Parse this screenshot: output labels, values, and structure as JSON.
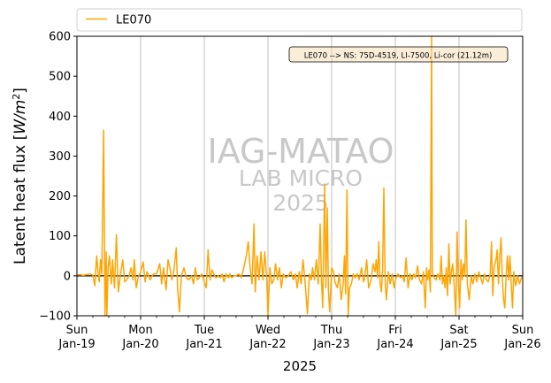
{
  "chart_data": {
    "type": "line",
    "title": "",
    "xlabel": "2025",
    "ylabel": "Latent heat flux [W/m²]",
    "ylabel_parts": {
      "base": "Latent heat flux [",
      "unit": "W/m",
      "exp": "2",
      "close": "]"
    },
    "xlim_days": [
      0,
      7
    ],
    "ylim": [
      -100,
      600
    ],
    "y_ticks": [
      -100,
      0,
      100,
      200,
      300,
      400,
      500,
      600
    ],
    "x_ticks": [
      {
        "day": 0,
        "line1": "Sun",
        "line2": "Jan-19"
      },
      {
        "day": 1,
        "line1": "Mon",
        "line2": "Jan-20"
      },
      {
        "day": 2,
        "line1": "Tue",
        "line2": "Jan-21"
      },
      {
        "day": 3,
        "line1": "Wed",
        "line2": "Jan-22"
      },
      {
        "day": 4,
        "line1": "Thu",
        "line2": "Jan-23"
      },
      {
        "day": 5,
        "line1": "Fri",
        "line2": "Jan-24"
      },
      {
        "day": 6,
        "line1": "Sat",
        "line2": "Jan-25"
      },
      {
        "day": 7,
        "line1": "Sun",
        "line2": "Jan-26"
      }
    ],
    "grid": "vertical",
    "zero_line": true,
    "legend": {
      "placement": "top",
      "entries": [
        {
          "name": "LE070",
          "color": "#FFA500"
        }
      ]
    },
    "annotation": "LE070 --> NS: 75D-4519, LI-7500, Li-cor (21.12m)",
    "watermark": {
      "line1": "IAG-MATAO",
      "line2": "LAB MICRO",
      "line3": "2025"
    },
    "series": [
      {
        "name": "LE070",
        "color": "#FFA500",
        "points": [
          [
            0.0,
            2
          ],
          [
            0.05,
            3
          ],
          [
            0.1,
            1
          ],
          [
            0.15,
            3
          ],
          [
            0.2,
            5
          ],
          [
            0.25,
            2
          ],
          [
            0.28,
            -25
          ],
          [
            0.31,
            50
          ],
          [
            0.33,
            10
          ],
          [
            0.35,
            -15
          ],
          [
            0.37,
            40
          ],
          [
            0.39,
            5
          ],
          [
            0.42,
            365
          ],
          [
            0.44,
            -100
          ],
          [
            0.46,
            60
          ],
          [
            0.47,
            -100
          ],
          [
            0.49,
            20
          ],
          [
            0.51,
            50
          ],
          [
            0.54,
            -20
          ],
          [
            0.56,
            40
          ],
          [
            0.59,
            -30
          ],
          [
            0.62,
            103
          ],
          [
            0.65,
            -40
          ],
          [
            0.68,
            0
          ],
          [
            0.72,
            40
          ],
          [
            0.75,
            -15
          ],
          [
            0.78,
            -10
          ],
          [
            0.82,
            0
          ],
          [
            0.85,
            20
          ],
          [
            0.88,
            -10
          ],
          [
            0.9,
            40
          ],
          [
            0.93,
            -30
          ],
          [
            0.96,
            -5
          ],
          [
            1.0,
            10
          ],
          [
            1.04,
            35
          ],
          [
            1.07,
            -15
          ],
          [
            1.1,
            10
          ],
          [
            1.15,
            -10
          ],
          [
            1.2,
            5
          ],
          [
            1.25,
            5
          ],
          [
            1.3,
            30
          ],
          [
            1.33,
            -20
          ],
          [
            1.36,
            20
          ],
          [
            1.4,
            -35
          ],
          [
            1.43,
            40
          ],
          [
            1.46,
            20
          ],
          [
            1.49,
            -10
          ],
          [
            1.52,
            10
          ],
          [
            1.56,
            70
          ],
          [
            1.58,
            -30
          ],
          [
            1.61,
            -90
          ],
          [
            1.64,
            0
          ],
          [
            1.68,
            20
          ],
          [
            1.72,
            -5
          ],
          [
            1.76,
            -10
          ],
          [
            1.8,
            0
          ],
          [
            1.83,
            -20
          ],
          [
            1.86,
            20
          ],
          [
            1.89,
            -10
          ],
          [
            1.92,
            -5
          ],
          [
            1.96,
            5
          ],
          [
            2.0,
            -15
          ],
          [
            2.03,
            -30
          ],
          [
            2.06,
            65
          ],
          [
            2.09,
            -10
          ],
          [
            2.12,
            15
          ],
          [
            2.15,
            5
          ],
          [
            2.18,
            -5
          ],
          [
            2.22,
            0
          ],
          [
            2.25,
            -5
          ],
          [
            2.28,
            5
          ],
          [
            2.31,
            -15
          ],
          [
            2.34,
            5
          ],
          [
            2.38,
            -5
          ],
          [
            2.4,
            5
          ],
          [
            2.43,
            -5
          ],
          [
            2.46,
            0
          ],
          [
            2.5,
            0
          ],
          [
            2.54,
            5
          ],
          [
            2.58,
            -5
          ],
          [
            2.62,
            20
          ],
          [
            2.66,
            50
          ],
          [
            2.69,
            85
          ],
          [
            2.72,
            20
          ],
          [
            2.75,
            -20
          ],
          [
            2.78,
            130
          ],
          [
            2.8,
            -40
          ],
          [
            2.83,
            50
          ],
          [
            2.86,
            -10
          ],
          [
            2.89,
            60
          ],
          [
            2.92,
            -10
          ],
          [
            2.95,
            60
          ],
          [
            2.98,
            -10
          ],
          [
            3.0,
            -100
          ],
          [
            3.03,
            20
          ],
          [
            3.06,
            -20
          ],
          [
            3.09,
            -10
          ],
          [
            3.12,
            30
          ],
          [
            3.15,
            -10
          ],
          [
            3.18,
            20
          ],
          [
            3.21,
            -30
          ],
          [
            3.24,
            5
          ],
          [
            3.28,
            -5
          ],
          [
            3.32,
            0
          ],
          [
            3.36,
            10
          ],
          [
            3.4,
            -10
          ],
          [
            3.43,
            5
          ],
          [
            3.46,
            -30
          ],
          [
            3.49,
            10
          ],
          [
            3.52,
            -20
          ],
          [
            3.55,
            40
          ],
          [
            3.58,
            -10
          ],
          [
            3.62,
            -95
          ],
          [
            3.65,
            5
          ],
          [
            3.68,
            -10
          ],
          [
            3.7,
            20
          ],
          [
            3.73,
            -10
          ],
          [
            3.76,
            40
          ],
          [
            3.79,
            -20
          ],
          [
            3.82,
            130
          ],
          [
            3.84,
            -10
          ],
          [
            3.86,
            -80
          ],
          [
            3.89,
            230
          ],
          [
            3.91,
            -30
          ],
          [
            3.93,
            170
          ],
          [
            3.95,
            -40
          ],
          [
            3.97,
            -90
          ],
          [
            4.0,
            20
          ],
          [
            4.03,
            10
          ],
          [
            4.05,
            -15
          ],
          [
            4.09,
            -30
          ],
          [
            4.12,
            5
          ],
          [
            4.15,
            -60
          ],
          [
            4.18,
            -20
          ],
          [
            4.2,
            50
          ],
          [
            4.22,
            -45
          ],
          [
            4.24,
            215
          ],
          [
            4.26,
            -100
          ],
          [
            4.28,
            -30
          ],
          [
            4.31,
            -20
          ],
          [
            4.34,
            5
          ],
          [
            4.37,
            -5
          ],
          [
            4.4,
            5
          ],
          [
            4.43,
            -10
          ],
          [
            4.47,
            20
          ],
          [
            4.5,
            -15
          ],
          [
            4.52,
            -5
          ],
          [
            4.55,
            40
          ],
          [
            4.58,
            -30
          ],
          [
            4.62,
            -10
          ],
          [
            4.65,
            30
          ],
          [
            4.68,
            10
          ],
          [
            4.7,
            40
          ],
          [
            4.72,
            -5
          ],
          [
            4.74,
            85
          ],
          [
            4.76,
            -15
          ],
          [
            4.78,
            -40
          ],
          [
            4.8,
            15
          ],
          [
            4.82,
            220
          ],
          [
            4.84,
            -15
          ],
          [
            4.86,
            -60
          ],
          [
            4.89,
            10
          ],
          [
            4.92,
            -20
          ],
          [
            4.95,
            5
          ],
          [
            4.98,
            -30
          ],
          [
            5.0,
            -10
          ],
          [
            5.04,
            5
          ],
          [
            5.08,
            -5
          ],
          [
            5.11,
            0
          ],
          [
            5.14,
            -15
          ],
          [
            5.17,
            45
          ],
          [
            5.2,
            -30
          ],
          [
            5.23,
            5
          ],
          [
            5.26,
            -10
          ],
          [
            5.29,
            5
          ],
          [
            5.32,
            -5
          ],
          [
            5.35,
            25
          ],
          [
            5.38,
            -10
          ],
          [
            5.41,
            -20
          ],
          [
            5.44,
            10
          ],
          [
            5.47,
            -80
          ],
          [
            5.49,
            20
          ],
          [
            5.51,
            -10
          ],
          [
            5.53,
            15
          ],
          [
            5.55,
            -40
          ],
          [
            5.57,
            600
          ],
          [
            5.58,
            10
          ],
          [
            5.61,
            -5
          ],
          [
            5.64,
            -10
          ],
          [
            5.67,
            5
          ],
          [
            5.7,
            -10
          ],
          [
            5.72,
            50
          ],
          [
            5.74,
            -20
          ],
          [
            5.76,
            0
          ],
          [
            5.78,
            -30
          ],
          [
            5.8,
            20
          ],
          [
            5.82,
            -50
          ],
          [
            5.84,
            80
          ],
          [
            5.86,
            -20
          ],
          [
            5.88,
            10
          ],
          [
            5.9,
            30
          ],
          [
            5.92,
            -10
          ],
          [
            5.95,
            -100
          ],
          [
            5.97,
            110
          ],
          [
            5.99,
            -20
          ],
          [
            6.01,
            -80
          ],
          [
            6.03,
            40
          ],
          [
            6.05,
            -10
          ],
          [
            6.07,
            30
          ],
          [
            6.09,
            0
          ],
          [
            6.11,
            140
          ],
          [
            6.13,
            -20
          ],
          [
            6.16,
            -60
          ],
          [
            6.19,
            0
          ],
          [
            6.22,
            -20
          ],
          [
            6.25,
            5
          ],
          [
            6.28,
            -15
          ],
          [
            6.31,
            10
          ],
          [
            6.34,
            -5
          ],
          [
            6.37,
            -20
          ],
          [
            6.4,
            5
          ],
          [
            6.43,
            -10
          ],
          [
            6.46,
            -15
          ],
          [
            6.49,
            5
          ],
          [
            6.51,
            85
          ],
          [
            6.53,
            -50
          ],
          [
            6.55,
            20
          ],
          [
            6.58,
            40
          ],
          [
            6.6,
            65
          ],
          [
            6.62,
            -20
          ],
          [
            6.64,
            50
          ],
          [
            6.66,
            95
          ],
          [
            6.68,
            -10
          ],
          [
            6.7,
            -60
          ],
          [
            6.72,
            -80
          ],
          [
            6.74,
            0
          ],
          [
            6.76,
            50
          ],
          [
            6.78,
            -10
          ],
          [
            6.8,
            50
          ],
          [
            6.82,
            -20
          ],
          [
            6.84,
            -80
          ],
          [
            6.86,
            10
          ],
          [
            6.89,
            -25
          ],
          [
            6.92,
            0
          ],
          [
            6.95,
            -20
          ],
          [
            6.98,
            -5
          ],
          [
            7.0,
            -5
          ]
        ]
      }
    ]
  }
}
